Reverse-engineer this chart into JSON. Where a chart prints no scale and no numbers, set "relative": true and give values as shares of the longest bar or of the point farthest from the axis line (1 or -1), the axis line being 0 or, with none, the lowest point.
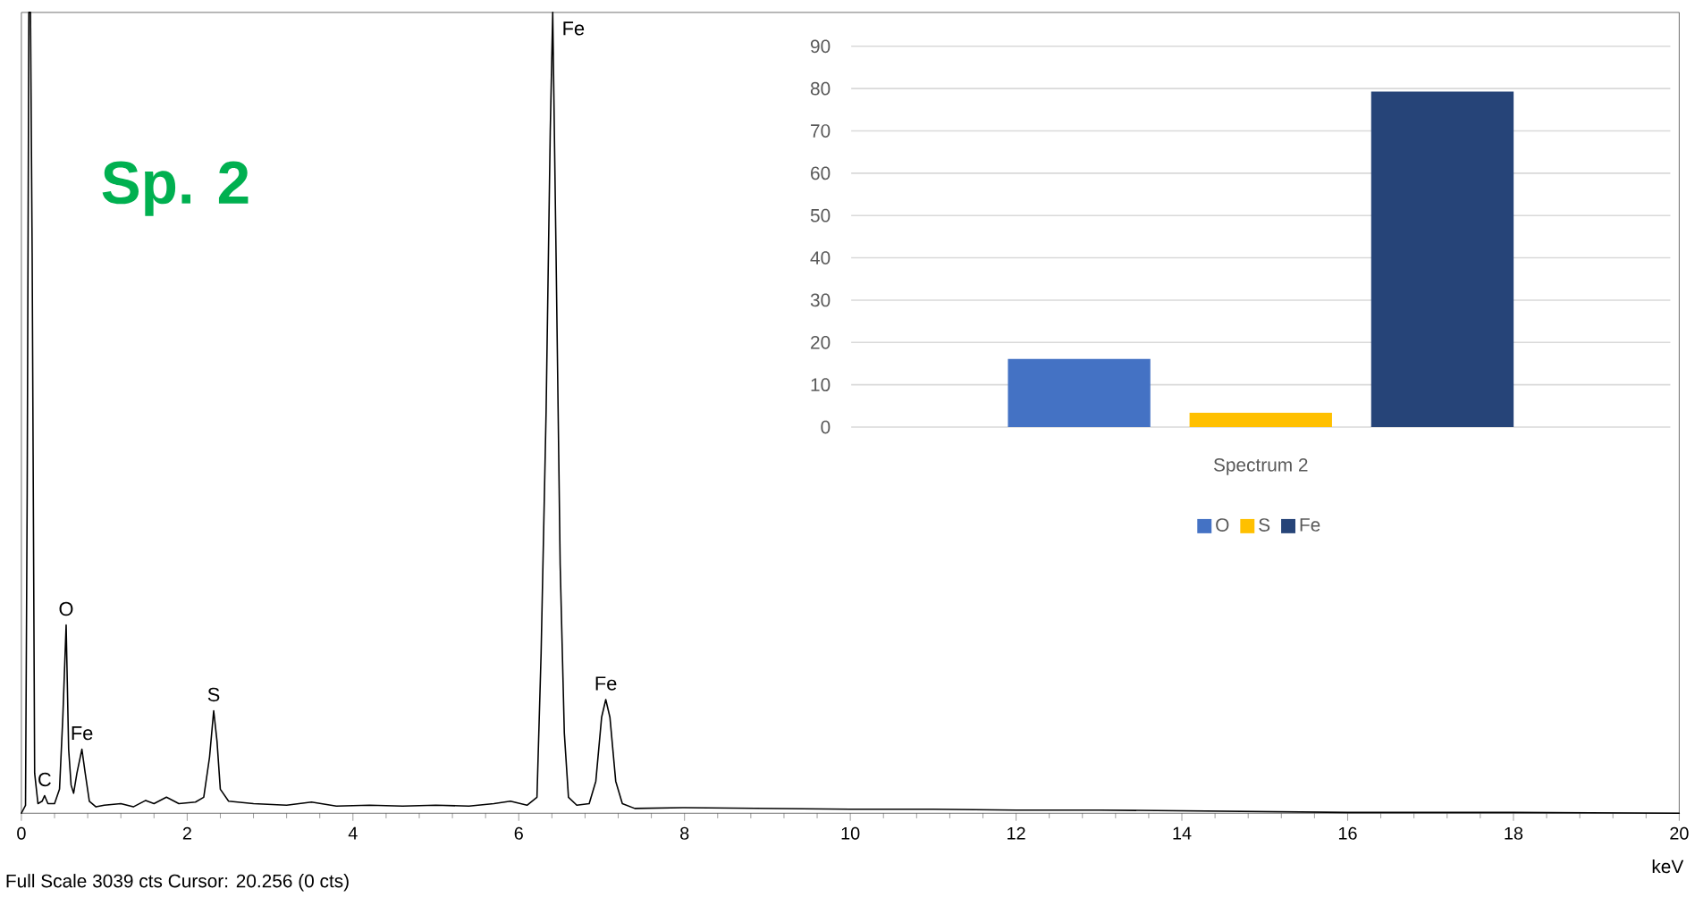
{
  "chart_data": [
    {
      "type": "line",
      "title": "Sp. 2",
      "xlabel": "keV",
      "relative": true,
      "color": "#000000",
      "xlim": [
        0,
        20
      ],
      "xticks": [
        0,
        2,
        4,
        6,
        8,
        10,
        12,
        14,
        16,
        18,
        20
      ],
      "x": [
        0,
        0.05,
        0.07,
        0.09,
        0.11,
        0.13,
        0.16,
        0.2,
        0.25,
        0.28,
        0.32,
        0.4,
        0.46,
        0.5,
        0.54,
        0.57,
        0.6,
        0.63,
        0.67,
        0.73,
        0.77,
        0.82,
        0.9,
        1.0,
        1.2,
        1.35,
        1.5,
        1.6,
        1.75,
        1.9,
        2.1,
        2.2,
        2.27,
        2.32,
        2.36,
        2.4,
        2.5,
        2.8,
        3.2,
        3.5,
        3.8,
        4.2,
        4.6,
        5.0,
        5.4,
        5.7,
        5.9,
        6.1,
        6.22,
        6.27,
        6.33,
        6.38,
        6.41,
        6.45,
        6.5,
        6.55,
        6.6,
        6.7,
        6.85,
        6.93,
        7.0,
        7.05,
        7.1,
        7.17,
        7.25,
        7.4,
        8,
        9,
        10,
        11,
        12,
        13,
        14,
        15,
        16,
        18,
        20
      ],
      "values": [
        0,
        0.01,
        0.4,
        1,
        1,
        0.7,
        0.05,
        0.012,
        0.015,
        0.022,
        0.012,
        0.012,
        0.03,
        0.12,
        0.235,
        0.08,
        0.035,
        0.025,
        0.05,
        0.08,
        0.05,
        0.015,
        0.008,
        0.01,
        0.012,
        0.008,
        0.016,
        0.012,
        0.02,
        0.012,
        0.014,
        0.02,
        0.07,
        0.128,
        0.09,
        0.03,
        0.015,
        0.012,
        0.01,
        0.014,
        0.009,
        0.01,
        0.009,
        0.01,
        0.009,
        0.012,
        0.015,
        0.01,
        0.02,
        0.2,
        0.5,
        0.85,
        1,
        0.7,
        0.31,
        0.1,
        0.02,
        0.01,
        0.012,
        0.04,
        0.12,
        0.142,
        0.12,
        0.04,
        0.012,
        0.006,
        0.007,
        0.006,
        0.005,
        0.005,
        0.004,
        0.004,
        0.003,
        0.002,
        0.001,
        0.001,
        0
      ],
      "annotations": [
        {
          "text": "C",
          "x": 0.28,
          "y": 0.022
        },
        {
          "text": "O",
          "x": 0.54,
          "y": 0.235
        },
        {
          "text": "Fe",
          "x": 0.73,
          "y": 0.08
        },
        {
          "text": "S",
          "x": 2.32,
          "y": 0.128
        },
        {
          "text": "Fe",
          "x": 6.41,
          "y": 1
        },
        {
          "text": "Fe",
          "x": 7.05,
          "y": 0.142
        },
        "Full Scale 3039 cts Cursor: 20.256  (0 cts)"
      ]
    },
    {
      "type": "bar",
      "categories": [
        "Spectrum 2"
      ],
      "ylim": [
        0,
        90
      ],
      "yticks": [
        0,
        10,
        20,
        30,
        40,
        50,
        60,
        70,
        80,
        90
      ],
      "grid": "y",
      "legend": "bottom",
      "series": [
        {
          "name": "O",
          "color": "#4472c4",
          "values": [
            16.1
          ]
        },
        {
          "name": "S",
          "color": "#ffc000",
          "values": [
            3.4
          ]
        },
        {
          "name": "Fe",
          "color": "#264478",
          "values": [
            79.3
          ]
        }
      ]
    }
  ]
}
